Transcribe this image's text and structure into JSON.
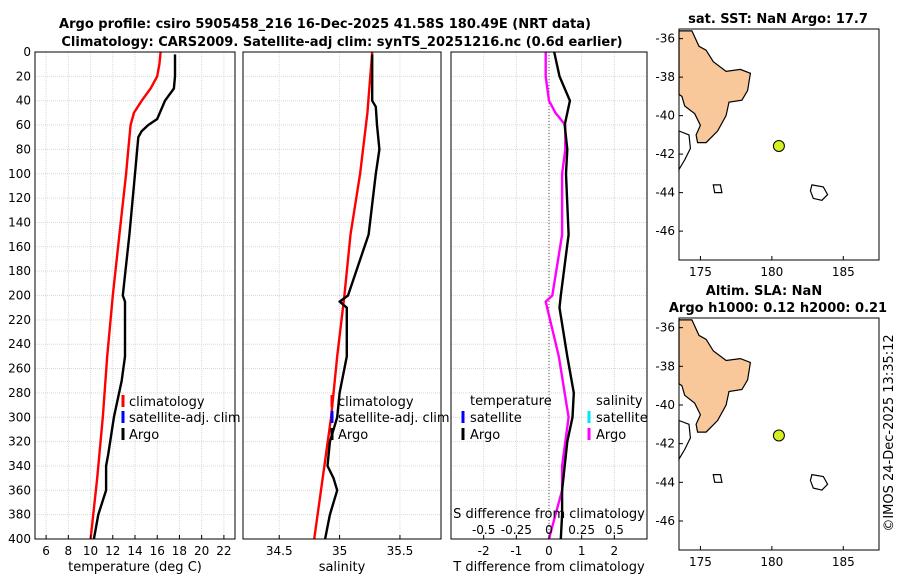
{
  "title_line1": "Argo profile: csiro 5905458_216 16-Dec-2025 41.58S 180.49E (NRT data)",
  "title_line2": "Climatology: CARS2009. Satellite-adj clim: synTS_20251216.nc (0.6d earlier)",
  "depth_ticks": [
    "0",
    "20",
    "40",
    "60",
    "80",
    "100",
    "120",
    "140",
    "160",
    "180",
    "200",
    "220",
    "240",
    "260",
    "280",
    "300",
    "320",
    "340",
    "360",
    "380",
    "400"
  ],
  "map_sst_title": "sat. SST: NaN Argo: 17.7",
  "map_sla_title1": "Altim. SLA: NaN",
  "map_sla_title2": "Argo h1000: 0.12 h2000: 0.21",
  "watermark": "©IMOS 24-Dec-2025 13:35:12",
  "colors": {
    "climatology": "#ff0000",
    "satellite": "#0000ff",
    "argo": "#000000",
    "t_diff": "#ff00ff",
    "s_sat": "#00e5ff",
    "land": "#f8c89a",
    "marker": "#d4f020"
  },
  "chart_data": [
    {
      "type": "line",
      "name": "temperature",
      "xlabel": "temperature (deg C)",
      "ylabel": "",
      "xlim": [
        5,
        23
      ],
      "ylim": [
        0,
        400
      ],
      "xticks": [
        "6",
        "8",
        "10",
        "12",
        "14",
        "16",
        "18",
        "20",
        "22"
      ],
      "legend": [
        "climatology",
        "satellite-adj. clim",
        "Argo"
      ],
      "series": [
        {
          "name": "climatology",
          "depth": [
            0,
            10,
            20,
            30,
            40,
            50,
            60,
            80,
            100,
            150,
            200,
            250,
            300,
            350,
            400
          ],
          "values": [
            16.3,
            16.2,
            16.0,
            15.4,
            14.6,
            13.9,
            13.6,
            13.4,
            13.2,
            12.6,
            12.0,
            11.5,
            11.1,
            10.6,
            10.0
          ]
        },
        {
          "name": "Argo",
          "depth": [
            2,
            20,
            30,
            40,
            55,
            60,
            65,
            70,
            80,
            100,
            150,
            200,
            205,
            250,
            270,
            300,
            330,
            340,
            360,
            380,
            400
          ],
          "values": [
            17.6,
            17.6,
            17.5,
            16.7,
            16.0,
            15.2,
            14.6,
            14.3,
            14.2,
            14.0,
            13.5,
            12.9,
            13.1,
            13.1,
            12.8,
            12.1,
            11.6,
            11.4,
            11.4,
            10.7,
            10.3
          ]
        }
      ]
    },
    {
      "type": "line",
      "name": "salinity",
      "xlabel": "salinity",
      "ylabel": "",
      "xlim": [
        34.2,
        35.84
      ],
      "ylim": [
        0,
        400
      ],
      "xticks": [
        "34.5",
        "35",
        "35.5"
      ],
      "legend": [
        "climatology",
        "satellite-adj. clim",
        "Argo"
      ],
      "series": [
        {
          "name": "climatology",
          "depth": [
            0,
            50,
            100,
            150,
            200,
            250,
            300,
            350,
            400
          ],
          "values": [
            35.27,
            35.23,
            35.17,
            35.09,
            35.04,
            34.98,
            34.93,
            34.86,
            34.79
          ]
        },
        {
          "name": "Argo",
          "depth": [
            2,
            20,
            40,
            45,
            60,
            80,
            100,
            150,
            200,
            205,
            210,
            250,
            280,
            300,
            320,
            340,
            350,
            360,
            380,
            400
          ],
          "values": [
            35.27,
            35.27,
            35.27,
            35.3,
            35.31,
            35.33,
            35.3,
            35.24,
            35.07,
            35.0,
            35.06,
            35.06,
            35.0,
            34.98,
            34.92,
            34.9,
            34.95,
            34.98,
            34.92,
            34.88
          ]
        }
      ]
    },
    {
      "type": "line",
      "name": "differences",
      "xlabel": "T difference from climatology",
      "x2label": "S difference from climatology",
      "ylabel": "",
      "xlim": [
        -3,
        3
      ],
      "ylim": [
        0,
        400
      ],
      "xticks": [
        "-2",
        "-1",
        "0",
        "1",
        "2"
      ],
      "x2ticks": [
        "-0.5",
        "-0.25",
        "0",
        "0.25",
        "0.5"
      ],
      "legend_left": [
        "temperature",
        "satellite",
        "Argo"
      ],
      "legend_right": [
        "salinity",
        "satellite",
        "Argo"
      ],
      "series": [
        {
          "name": "T difference",
          "depth": [
            0,
            20,
            40,
            50,
            60,
            80,
            100,
            150,
            200,
            205,
            250,
            300,
            340,
            360,
            380,
            400
          ],
          "values": [
            -0.1,
            -0.1,
            0.0,
            0.2,
            0.5,
            0.5,
            0.4,
            0.4,
            0.1,
            -0.1,
            0.3,
            0.6,
            0.4,
            0.4,
            0.2,
            0.0
          ]
        },
        {
          "name": "S difference",
          "depth": [
            0,
            20,
            30,
            40,
            60,
            80,
            100,
            150,
            200,
            210,
            250,
            280,
            300,
            320,
            340,
            360,
            380,
            400
          ],
          "values": [
            0.04,
            0.08,
            0.12,
            0.16,
            0.12,
            0.14,
            0.13,
            0.15,
            0.09,
            0.08,
            0.14,
            0.19,
            0.18,
            0.14,
            0.12,
            0.1,
            0.1,
            0.09
          ]
        }
      ]
    },
    {
      "type": "scatter",
      "name": "map_sst",
      "xlim": [
        173.5,
        187.5
      ],
      "ylim": [
        -47.5,
        -35.5
      ],
      "xticks": [
        "175",
        "180",
        "185"
      ],
      "yticks": [
        "-36",
        "-38",
        "-40",
        "-42",
        "-44",
        "-46"
      ],
      "points": [
        {
          "lon": 180.49,
          "lat": -41.58
        }
      ]
    },
    {
      "type": "scatter",
      "name": "map_sla",
      "xlim": [
        173.5,
        187.5
      ],
      "ylim": [
        -47.5,
        -35.5
      ],
      "xticks": [
        "175",
        "180",
        "185"
      ],
      "yticks": [
        "-36",
        "-38",
        "-40",
        "-42",
        "-44",
        "-46"
      ],
      "points": [
        {
          "lon": 180.49,
          "lat": -41.58
        }
      ]
    }
  ]
}
